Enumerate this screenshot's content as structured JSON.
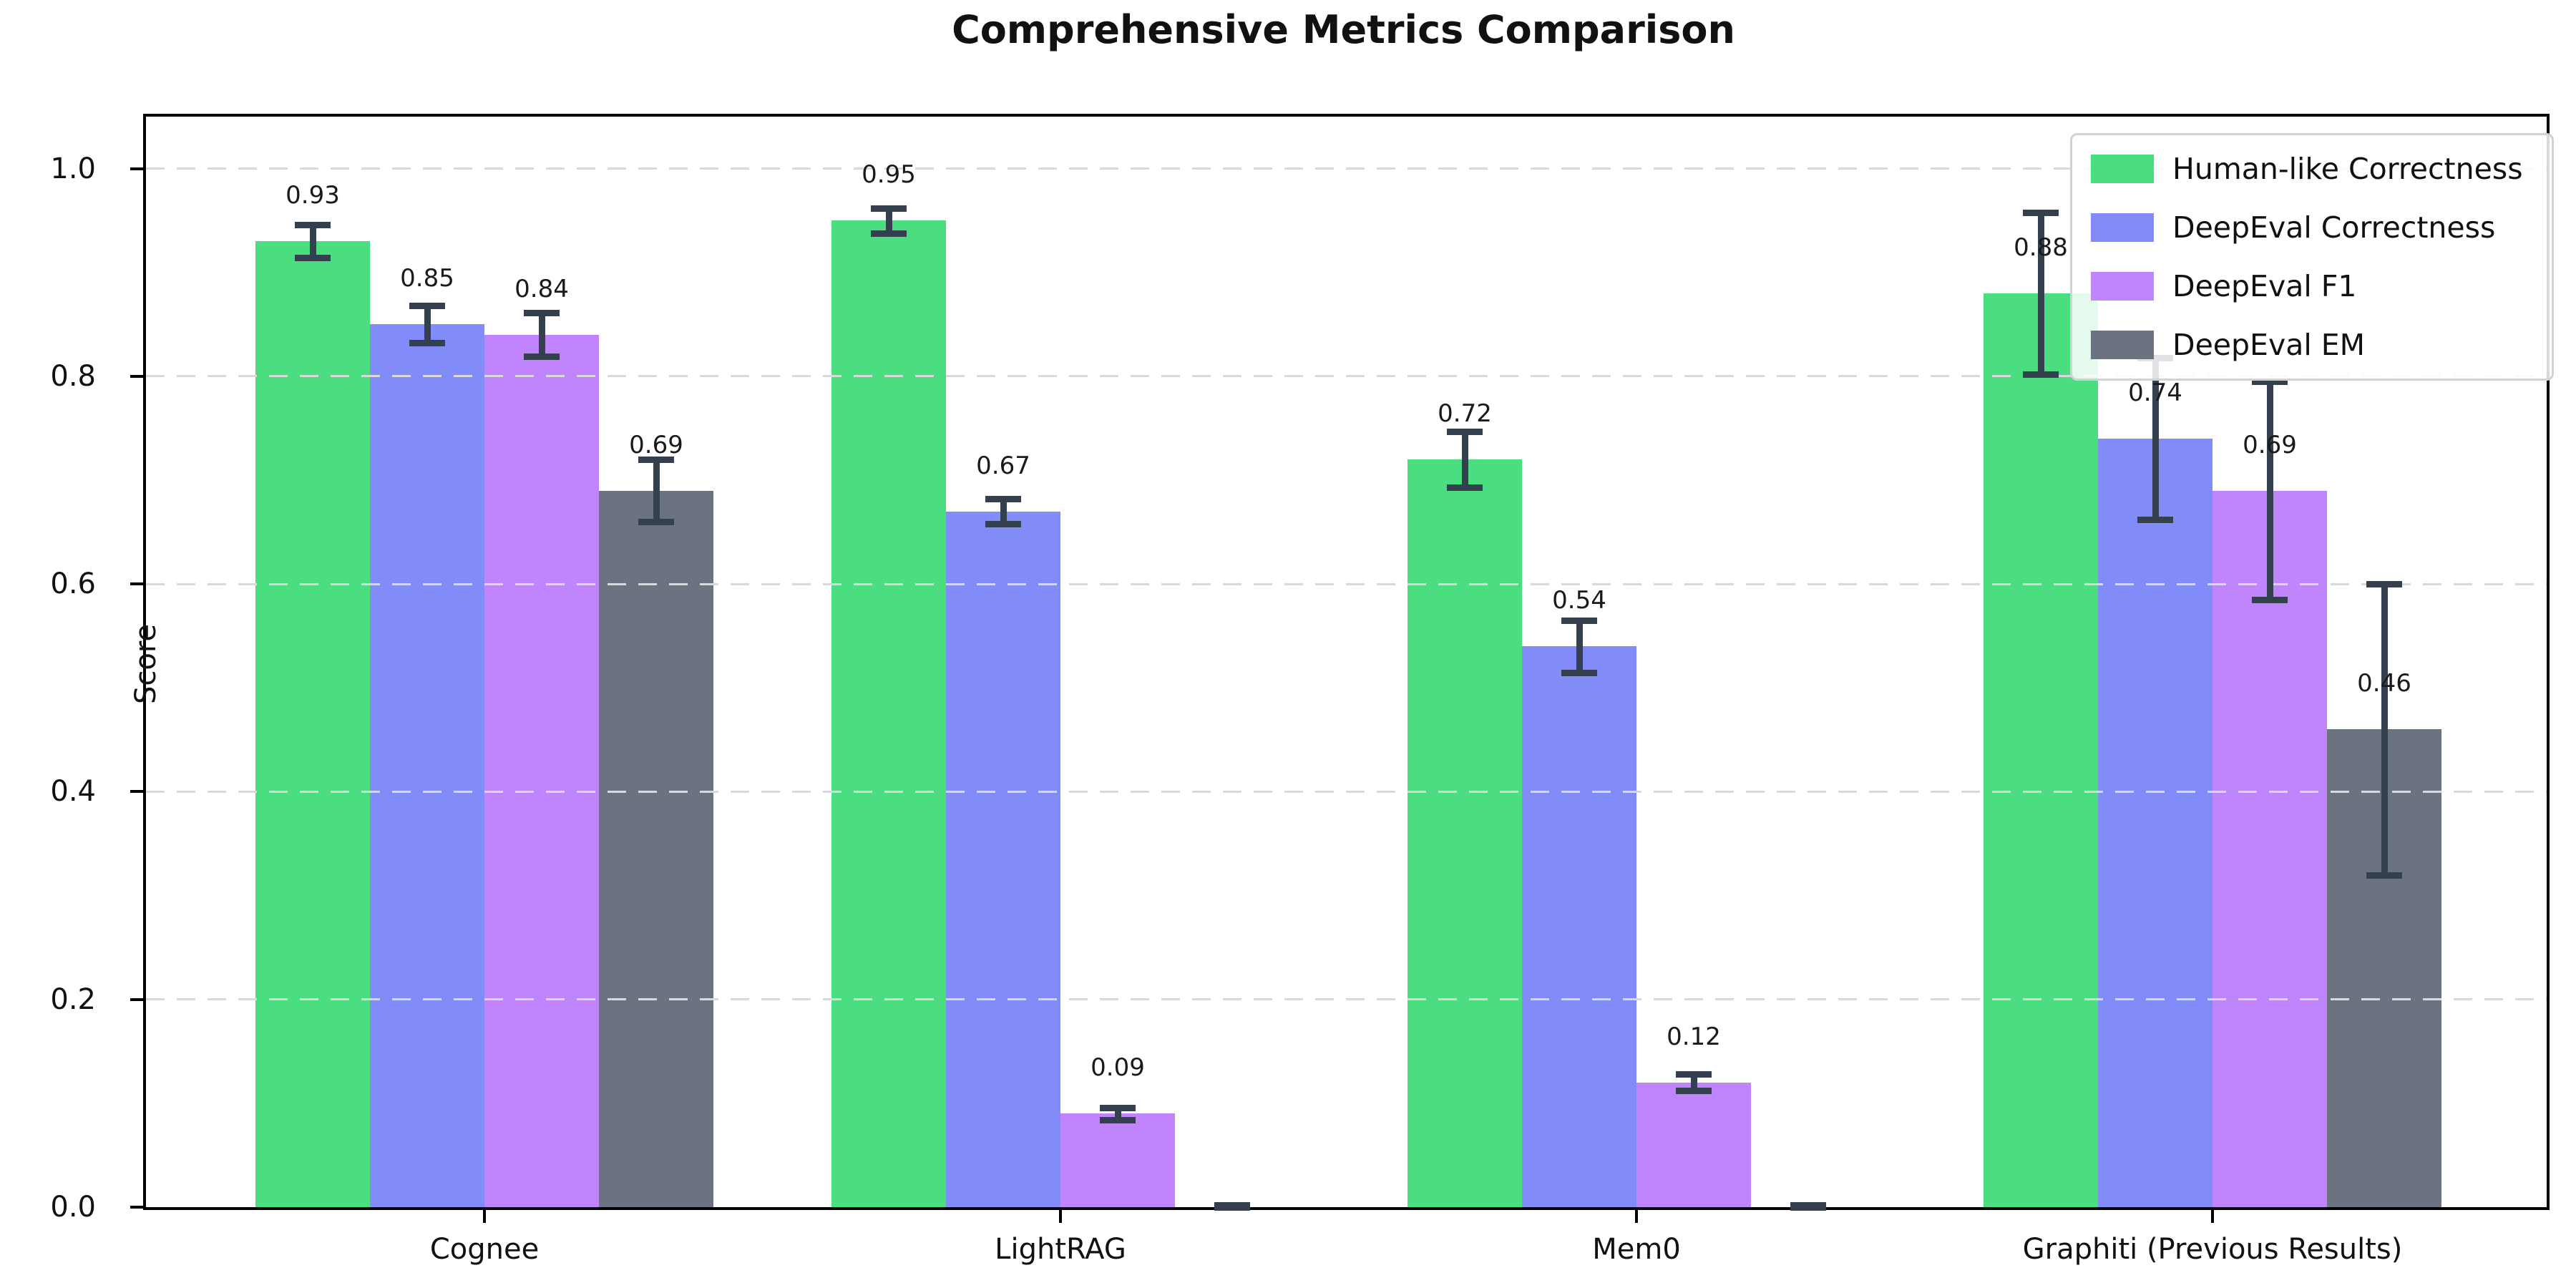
{
  "title": "Comprehensive Metrics Comparison",
  "chart_data": {
    "type": "bar",
    "title": "Comprehensive Metrics Comparison",
    "xlabel": "",
    "ylabel": "Score",
    "categories": [
      "Cognee",
      "LightRAG",
      "Mem0",
      "Graphiti (Previous Results)"
    ],
    "series": [
      {
        "name": "Human-like Correctness",
        "color": "#4ade80",
        "values": [
          0.93,
          0.95,
          0.72,
          0.88
        ],
        "errors": [
          0.016,
          0.012,
          0.027,
          0.078
        ]
      },
      {
        "name": "DeepEval Correctness",
        "color": "#818cf8",
        "values": [
          0.85,
          0.67,
          0.54,
          0.74
        ],
        "errors": [
          0.018,
          0.012,
          0.025,
          0.078
        ]
      },
      {
        "name": "DeepEval F1",
        "color": "#c084fc",
        "values": [
          0.84,
          0.09,
          0.12,
          0.69
        ],
        "errors": [
          0.021,
          0.006,
          0.008,
          0.105
        ]
      },
      {
        "name": "DeepEval EM",
        "color": "#6b7280",
        "values": [
          0.69,
          0.0,
          0.0,
          0.46
        ],
        "errors": [
          0.03,
          0.002,
          0.002,
          0.14
        ]
      }
    ],
    "ylim": [
      0,
      1.05
    ],
    "yticks": [
      "0.0",
      "0.2",
      "0.4",
      "0.6",
      "0.8",
      "1.0"
    ],
    "grid": "horizontal dashed",
    "legend_position": "upper right",
    "bar_labels": "two-decimal values above bars; omitted for zero-height bars",
    "error_bar_color": "#35404e"
  },
  "colors": {
    "background": "#ffffff",
    "axis": "#000000",
    "grid": "#d9d9d9",
    "errorbar": "#35404e",
    "legend_border": "#d2d2d2",
    "text": "#111111"
  }
}
